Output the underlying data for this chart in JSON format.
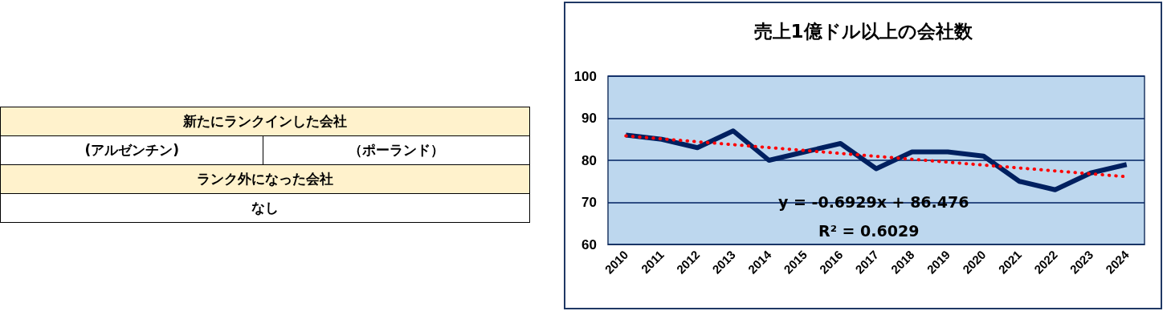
{
  "chart_data": [
    {
      "type": "other",
      "annotations": [
        "新たにランクインした会社",
        "(アルゼンチン)",
        "（ポーランド）",
        "ランク外になった会社",
        "なし"
      ]
    },
    {
      "type": "line",
      "title": "売上1億ドル以上の会社数",
      "categories": [
        "2010",
        "2011",
        "2012",
        "2013",
        "2014",
        "2015",
        "2016",
        "2017",
        "2018",
        "2019",
        "2020",
        "2021",
        "2022",
        "2023",
        "2024"
      ],
      "series": [
        {
          "color": "#002060",
          "values": [
            86,
            85,
            83,
            87,
            80,
            82,
            84,
            78,
            82,
            82,
            81,
            75,
            73,
            77,
            79
          ]
        },
        {
          "type": "line",
          "color": "#ff0000",
          "line_style": "dotted",
          "values": [
            85.8,
            null,
            null,
            null,
            null,
            null,
            null,
            null,
            null,
            null,
            null,
            null,
            null,
            null,
            76.1
          ]
        }
      ],
      "ylim": [
        60,
        100
      ],
      "yticks": [
        60,
        70,
        80,
        90,
        100
      ],
      "grid": "y",
      "marker": "none",
      "annotations": [
        "y = -0.6929x + 86.476",
        "R² = 0.6029"
      ]
    }
  ]
}
